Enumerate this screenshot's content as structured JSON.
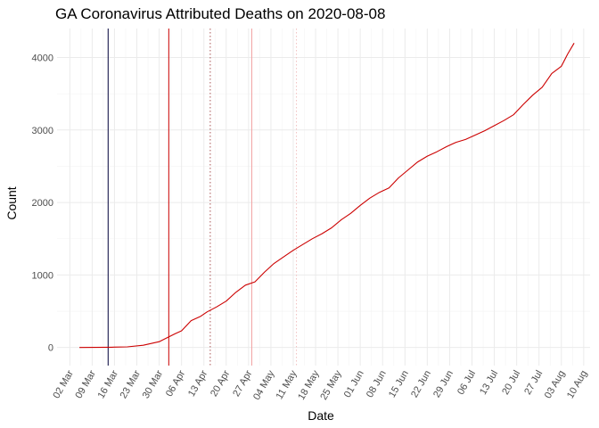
{
  "chart_data": {
    "type": "line",
    "title": "GA Coronavirus Attributed Deaths on 2020-08-08",
    "xlabel": "Date",
    "ylabel": "Count",
    "xlim": [
      "2020-02-27",
      "2020-08-12"
    ],
    "ylim": [
      -250,
      4400
    ],
    "x_ticks": [
      "2020-03-02",
      "2020-03-09",
      "2020-03-16",
      "2020-03-23",
      "2020-03-30",
      "2020-04-06",
      "2020-04-13",
      "2020-04-20",
      "2020-04-27",
      "2020-05-04",
      "2020-05-11",
      "2020-05-18",
      "2020-05-25",
      "2020-06-01",
      "2020-06-08",
      "2020-06-15",
      "2020-06-22",
      "2020-06-29",
      "2020-07-06",
      "2020-07-13",
      "2020-07-20",
      "2020-07-27",
      "2020-08-03",
      "2020-08-10"
    ],
    "x_tick_labels": [
      "02 Mar",
      "09 Mar",
      "16 Mar",
      "23 Mar",
      "30 Mar",
      "06 Apr",
      "13 Apr",
      "20 Apr",
      "27 Apr",
      "04 May",
      "11 May",
      "18 May",
      "25 May",
      "01 Jun",
      "08 Jun",
      "15 Jun",
      "22 Jun",
      "29 Jun",
      "06 Jul",
      "13 Jul",
      "20 Jul",
      "27 Jul",
      "03 Aug",
      "10 Aug"
    ],
    "y_ticks": [
      0,
      1000,
      2000,
      3000,
      4000
    ],
    "y_tick_labels": [
      "0",
      "1000",
      "2000",
      "3000",
      "4000"
    ],
    "grid": true,
    "series": [
      {
        "color": "#cc0000",
        "x": [
          "2020-03-05",
          "2020-03-10",
          "2020-03-15",
          "2020-03-20",
          "2020-03-25",
          "2020-03-30",
          "2020-04-04",
          "2020-04-06",
          "2020-04-09",
          "2020-04-12",
          "2020-04-14",
          "2020-04-17",
          "2020-04-20",
          "2020-04-23",
          "2020-04-26",
          "2020-04-29",
          "2020-05-02",
          "2020-05-05",
          "2020-05-08",
          "2020-05-11",
          "2020-05-14",
          "2020-05-17",
          "2020-05-20",
          "2020-05-23",
          "2020-05-26",
          "2020-05-29",
          "2020-06-01",
          "2020-06-04",
          "2020-06-07",
          "2020-06-10",
          "2020-06-13",
          "2020-06-16",
          "2020-06-19",
          "2020-06-22",
          "2020-06-25",
          "2020-06-28",
          "2020-07-01",
          "2020-07-04",
          "2020-07-07",
          "2020-07-10",
          "2020-07-13",
          "2020-07-16",
          "2020-07-19",
          "2020-07-22",
          "2020-07-25",
          "2020-07-28",
          "2020-07-31",
          "2020-08-03",
          "2020-08-05",
          "2020-08-07"
        ],
        "y": [
          0,
          1,
          3,
          8,
          30,
          80,
          190,
          230,
          370,
          430,
          490,
          560,
          640,
          760,
          860,
          905,
          1040,
          1160,
          1250,
          1340,
          1420,
          1500,
          1570,
          1650,
          1760,
          1850,
          1960,
          2060,
          2140,
          2200,
          2340,
          2450,
          2560,
          2640,
          2700,
          2770,
          2830,
          2870,
          2930,
          2990,
          3060,
          3130,
          3210,
          3350,
          3480,
          3590,
          3780,
          3880,
          4050,
          4200
        ]
      }
    ],
    "vlines": [
      {
        "x": "2020-03-14",
        "color": "#00003a",
        "style": "solid"
      },
      {
        "x": "2020-04-02",
        "color": "#cc0000",
        "style": "solid"
      },
      {
        "x": "2020-04-15",
        "color": "#aa5555",
        "style": "dotted"
      },
      {
        "x": "2020-04-28",
        "color": "#f2a0a0",
        "style": "solid"
      },
      {
        "x": "2020-05-12",
        "color": "#f2c0c0",
        "style": "dotted"
      }
    ]
  }
}
